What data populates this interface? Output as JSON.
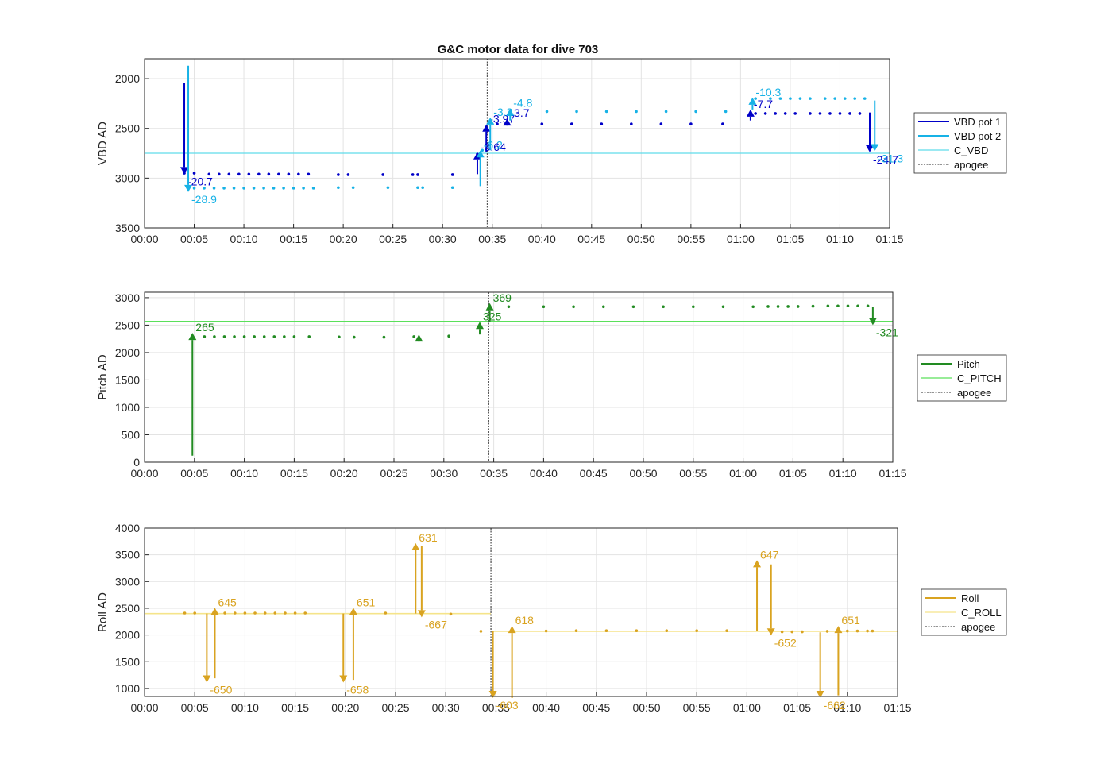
{
  "figure_title": "G&C motor data for dive 703",
  "x_ticks": [
    "00:00",
    "00:05",
    "00:10",
    "00:15",
    "00:20",
    "00:25",
    "00:30",
    "00:35",
    "00:40",
    "00:45",
    "00:50",
    "00:55",
    "01:00",
    "01:05",
    "01:10",
    "01:15"
  ],
  "apogee_min": 34.5,
  "colors": {
    "vbd1": "#0000c8",
    "vbd2": "#17b2e6",
    "c_vbd": "#5fdcea",
    "pitch": "#228b22",
    "c_pitch": "#5be05b",
    "roll": "#d9a320",
    "c_roll": "#f5e48a",
    "apogee": "#555555",
    "grid": "#e3e3e3",
    "axis": "#262626"
  },
  "chart_data": [
    {
      "type": "line",
      "name": "vbd",
      "ylabel": "VBD AD",
      "xlim": [
        0,
        75
      ],
      "ylim": [
        1800,
        3500
      ],
      "y_reversed": true,
      "yticks": [
        2000,
        2500,
        3000,
        3500
      ],
      "legend": [
        "VBD pot 1",
        "VBD pot 2",
        "C_VBD",
        "apogee"
      ],
      "constant": 2750,
      "series": [
        {
          "name": "VBD pot 1",
          "color_key": "vbd1",
          "points": [
            [
              4,
              2950
            ],
            [
              5,
              2950
            ],
            [
              6.5,
              2960
            ],
            [
              7.5,
              2960
            ],
            [
              8.5,
              2960
            ],
            [
              9.5,
              2960
            ],
            [
              10.5,
              2960
            ],
            [
              11.5,
              2960
            ],
            [
              12.5,
              2960
            ],
            [
              13.5,
              2960
            ],
            [
              14.5,
              2960
            ],
            [
              15.5,
              2960
            ],
            [
              16.5,
              2960
            ],
            [
              19.5,
              2965
            ],
            [
              20.5,
              2965
            ],
            [
              24,
              2965
            ],
            [
              27,
              2965
            ],
            [
              27.5,
              2965
            ],
            [
              31,
              2965
            ],
            [
              33.5,
              2760
            ],
            [
              35.5,
              2455
            ],
            [
              40,
              2455
            ],
            [
              43,
              2455
            ],
            [
              46,
              2455
            ],
            [
              49,
              2455
            ],
            [
              52,
              2455
            ],
            [
              55,
              2455
            ],
            [
              58.2,
              2455
            ],
            [
              61.5,
              2350
            ],
            [
              62.5,
              2350
            ],
            [
              63.5,
              2350
            ],
            [
              64.5,
              2350
            ],
            [
              65.5,
              2350
            ],
            [
              67,
              2350
            ],
            [
              68,
              2350
            ],
            [
              69,
              2350
            ],
            [
              70,
              2350
            ],
            [
              71,
              2350
            ],
            [
              72,
              2350
            ]
          ],
          "moves": [
            {
              "t": 4.0,
              "from": 2040,
              "to": 2960,
              "label": "-20.7"
            },
            {
              "t": 33.5,
              "from": 2960,
              "to": 2740,
              "label": "-3.64"
            },
            {
              "t": 34.4,
              "from": 2740,
              "to": 2460,
              "label": "-3.97"
            },
            {
              "t": 36.5,
              "from": 2470,
              "to": 2400,
              "label": "-3.7"
            },
            {
              "t": 61.0,
              "from": 2420,
              "to": 2310,
              "label": "-7.7"
            },
            {
              "t": 73.0,
              "from": 2340,
              "to": 2740,
              "label": "-24.7"
            }
          ]
        },
        {
          "name": "VBD pot 2",
          "color_key": "vbd2",
          "points": [
            [
              5,
              3100
            ],
            [
              6,
              3100
            ],
            [
              7,
              3100
            ],
            [
              8,
              3100
            ],
            [
              9,
              3100
            ],
            [
              10,
              3100
            ],
            [
              11,
              3100
            ],
            [
              12,
              3100
            ],
            [
              13,
              3100
            ],
            [
              14,
              3100
            ],
            [
              15,
              3100
            ],
            [
              16,
              3100
            ],
            [
              17,
              3100
            ],
            [
              19.5,
              3095
            ],
            [
              21,
              3095
            ],
            [
              24.5,
              3095
            ],
            [
              27.5,
              3095
            ],
            [
              28,
              3095
            ],
            [
              31,
              3095
            ],
            [
              34,
              2720
            ],
            [
              40.5,
              2330
            ],
            [
              43.5,
              2330
            ],
            [
              46.5,
              2330
            ],
            [
              49.5,
              2330
            ],
            [
              52.5,
              2330
            ],
            [
              55.5,
              2330
            ],
            [
              58.5,
              2330
            ],
            [
              61.5,
              2200
            ],
            [
              63,
              2200
            ],
            [
              64,
              2200
            ],
            [
              65,
              2200
            ],
            [
              66,
              2200
            ],
            [
              67,
              2200
            ],
            [
              68.5,
              2200
            ],
            [
              69.5,
              2200
            ],
            [
              70.5,
              2200
            ],
            [
              71.5,
              2200
            ],
            [
              72.5,
              2200
            ]
          ],
          "moves": [
            {
              "t": 4.4,
              "from": 1870,
              "to": 3140,
              "label": "-28.9"
            },
            {
              "t": 33.8,
              "from": 3080,
              "to": 2720,
              "label": "-6.2"
            },
            {
              "t": 34.8,
              "from": 2720,
              "to": 2390,
              "label": "-3.2"
            },
            {
              "t": 36.8,
              "from": 2420,
              "to": 2300,
              "label": "-4.8"
            },
            {
              "t": 61.2,
              "from": 2310,
              "to": 2190,
              "label": "-10.3"
            },
            {
              "t": 73.5,
              "from": 2220,
              "to": 2730,
              "label": "-31.3"
            }
          ]
        }
      ]
    },
    {
      "type": "line",
      "name": "pitch",
      "ylabel": "Pitch AD",
      "xlim": [
        0,
        75
      ],
      "ylim": [
        0,
        3100
      ],
      "yticks": [
        0,
        500,
        1000,
        1500,
        2000,
        2500,
        3000
      ],
      "legend": [
        "Pitch",
        "C_PITCH",
        "apogee"
      ],
      "constant": 2570,
      "series": [
        {
          "name": "Pitch",
          "color_key": "pitch",
          "points": [
            [
              6,
              2290
            ],
            [
              7,
              2290
            ],
            [
              8,
              2290
            ],
            [
              9,
              2290
            ],
            [
              10,
              2290
            ],
            [
              11,
              2290
            ],
            [
              12,
              2290
            ],
            [
              13,
              2290
            ],
            [
              14,
              2290
            ],
            [
              15,
              2290
            ],
            [
              16.5,
              2290
            ],
            [
              19.5,
              2285
            ],
            [
              21,
              2280
            ],
            [
              24,
              2280
            ],
            [
              27,
              2290
            ],
            [
              30.5,
              2300
            ],
            [
              36.5,
              2835
            ],
            [
              40,
              2835
            ],
            [
              43,
              2835
            ],
            [
              46,
              2835
            ],
            [
              49,
              2835
            ],
            [
              52,
              2835
            ],
            [
              55,
              2835
            ],
            [
              58,
              2835
            ],
            [
              61,
              2835
            ],
            [
              62.5,
              2840
            ],
            [
              63.5,
              2840
            ],
            [
              64.5,
              2840
            ],
            [
              65.5,
              2840
            ],
            [
              67,
              2845
            ],
            [
              68.5,
              2850
            ],
            [
              69.5,
              2850
            ],
            [
              70.5,
              2850
            ],
            [
              71.5,
              2850
            ],
            [
              72.5,
              2850
            ]
          ],
          "moves": [
            {
              "t": 4.8,
              "from": 120,
              "to": 2360,
              "label": "265"
            },
            {
              "t": 27.5,
              "from": 2280,
              "to": 2330,
              "label": ""
            },
            {
              "t": 33.6,
              "from": 2330,
              "to": 2560,
              "label": "325"
            },
            {
              "t": 34.6,
              "from": 2560,
              "to": 2900,
              "label": "369"
            },
            {
              "t": 73.0,
              "from": 2830,
              "to": 2500,
              "label": "-321"
            }
          ]
        }
      ]
    },
    {
      "type": "line",
      "name": "roll",
      "ylabel": "Roll AD",
      "xlim": [
        0,
        75
      ],
      "ylim": [
        850,
        4000
      ],
      "yticks": [
        1000,
        1500,
        2000,
        2500,
        3000,
        3500,
        4000
      ],
      "legend": [
        "Roll",
        "C_ROLL",
        "apogee"
      ],
      "constant_segments": [
        [
          0,
          34.5,
          2400
        ],
        [
          34.5,
          75,
          2070
        ]
      ],
      "series": [
        {
          "name": "Roll",
          "color_key": "roll",
          "points": [
            [
              4,
              2410
            ],
            [
              5,
              2410
            ],
            [
              8,
              2410
            ],
            [
              9,
              2410
            ],
            [
              10,
              2410
            ],
            [
              11,
              2410
            ],
            [
              12,
              2410
            ],
            [
              13,
              2410
            ],
            [
              14,
              2410
            ],
            [
              15,
              2410
            ],
            [
              16,
              2410
            ],
            [
              24,
              2410
            ],
            [
              30.5,
              2390
            ],
            [
              33.5,
              2070
            ],
            [
              40,
              2075
            ],
            [
              43,
              2080
            ],
            [
              46,
              2080
            ],
            [
              49,
              2080
            ],
            [
              52,
              2080
            ],
            [
              55,
              2080
            ],
            [
              58,
              2080
            ],
            [
              63.5,
              2060
            ],
            [
              64.5,
              2060
            ],
            [
              65.5,
              2060
            ],
            [
              68,
              2070
            ],
            [
              69,
              2070
            ],
            [
              70,
              2075
            ],
            [
              71,
              2075
            ],
            [
              72,
              2075
            ],
            [
              72.5,
              2075
            ]
          ],
          "moves": [
            {
              "t": 6.2,
              "from": 2400,
              "to": 1110,
              "label": "-650"
            },
            {
              "t": 7.0,
              "from": 1190,
              "to": 2510,
              "label": "645"
            },
            {
              "t": 19.8,
              "from": 2400,
              "to": 1110,
              "label": "-658"
            },
            {
              "t": 20.8,
              "from": 1160,
              "to": 2510,
              "label": "651"
            },
            {
              "t": 27.0,
              "from": 2400,
              "to": 3720,
              "label": "631"
            },
            {
              "t": 27.6,
              "from": 3670,
              "to": 2330,
              "label": "-667"
            },
            {
              "t": 34.7,
              "from": 2070,
              "to": 820,
              "label": "-603"
            },
            {
              "t": 36.6,
              "from": 820,
              "to": 2170,
              "label": "618"
            },
            {
              "t": 61.0,
              "from": 2070,
              "to": 3400,
              "label": "647"
            },
            {
              "t": 62.4,
              "from": 3320,
              "to": 1990,
              "label": "-652"
            },
            {
              "t": 67.3,
              "from": 2050,
              "to": 820,
              "label": "-662"
            },
            {
              "t": 69.1,
              "from": 870,
              "to": 2170,
              "label": "651"
            }
          ]
        }
      ]
    }
  ]
}
